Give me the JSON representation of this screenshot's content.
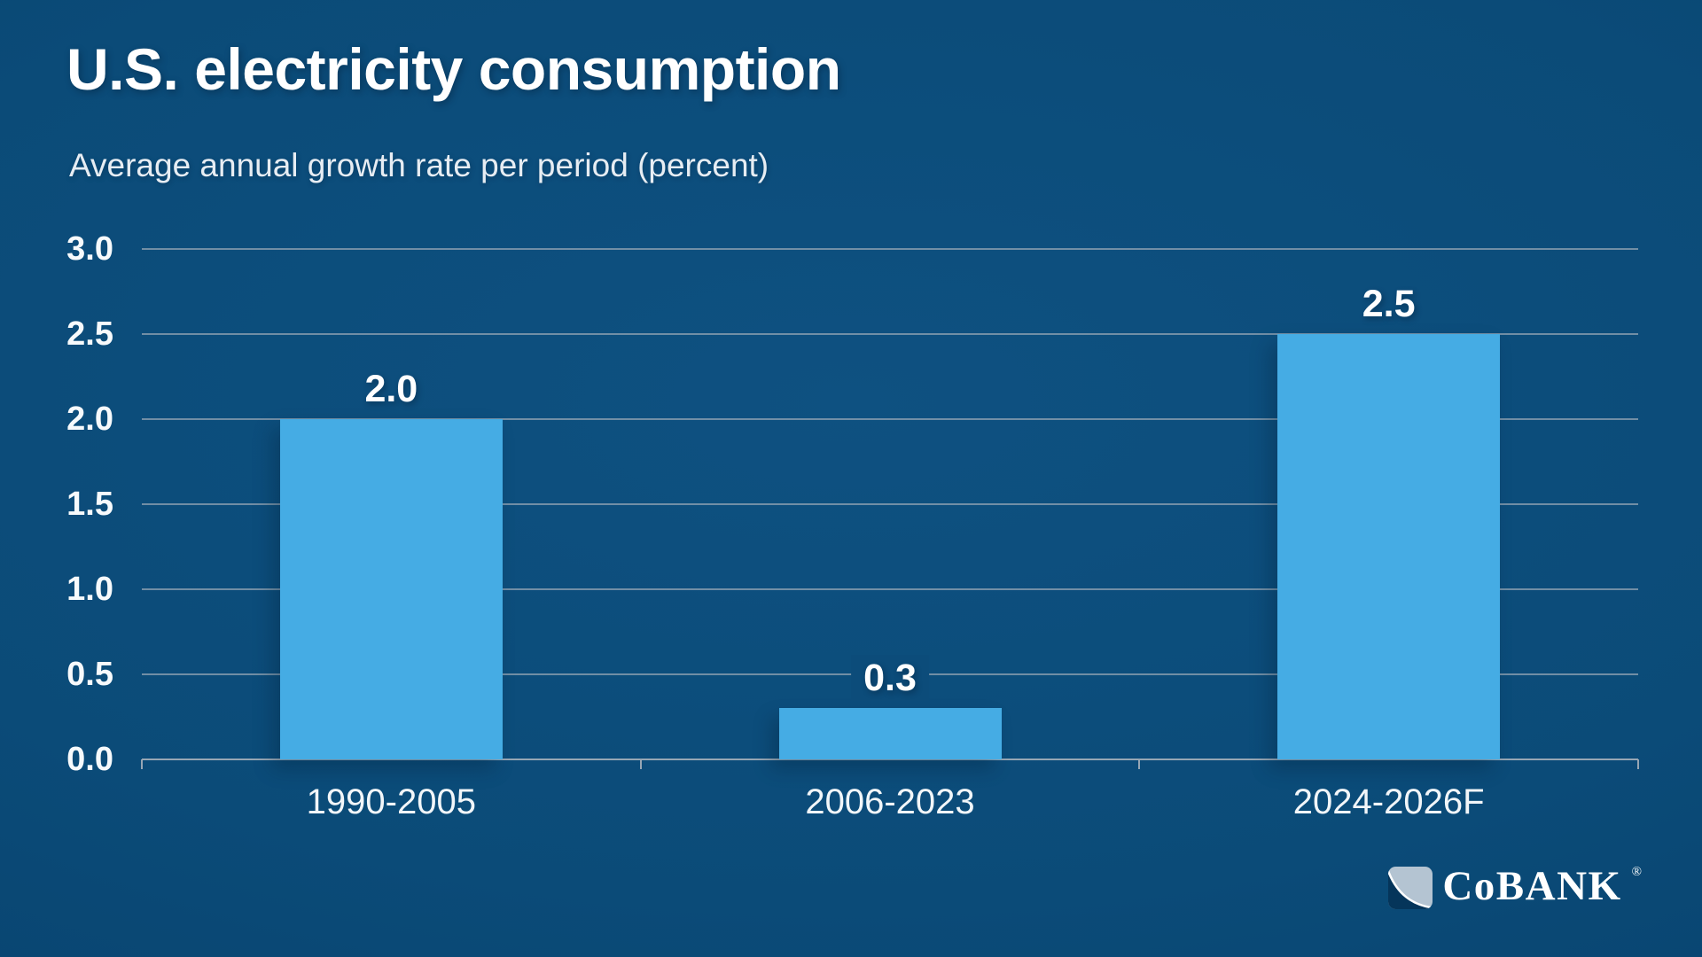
{
  "header": {
    "title": "U.S. electricity consumption",
    "subtitle": "Average annual growth rate per period (percent)"
  },
  "chart_data": {
    "type": "bar",
    "title": "U.S. electricity consumption",
    "subtitle": "Average annual growth rate per period (percent)",
    "categories": [
      "1990-2005",
      "2006-2023",
      "2024-2026F"
    ],
    "values": [
      2.0,
      0.3,
      2.5
    ],
    "value_labels": [
      "2.0",
      "0.3",
      "2.5"
    ],
    "xlabel": "",
    "ylabel": "",
    "ylim": [
      0,
      3.0
    ],
    "yticks": [
      0.0,
      0.5,
      1.0,
      1.5,
      2.0,
      2.5,
      3.0
    ],
    "ytick_labels": [
      "0.0",
      "0.5",
      "1.0",
      "1.5",
      "2.0",
      "2.5",
      "3.0"
    ],
    "grid": true,
    "legend": false,
    "bar_color": "#45ace4"
  },
  "colors": {
    "background_center": "#0e5181",
    "background_edge": "#053b64",
    "bar": "#45ace4",
    "gridline": "#98a7b5",
    "axis": "#97a6b4",
    "text": "#ffffff"
  },
  "footer": {
    "logo_text": "CoBANK",
    "logo_mark": "®"
  }
}
